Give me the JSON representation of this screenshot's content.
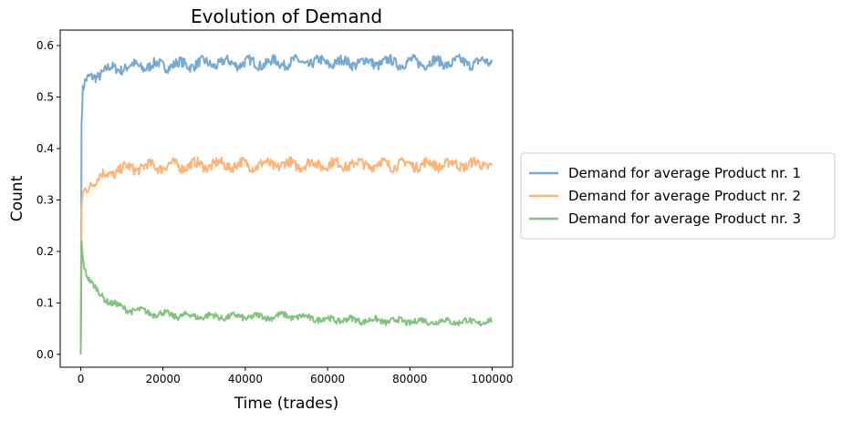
{
  "chart_data": {
    "type": "line",
    "title": "Evolution of Demand",
    "xlabel": "Time (trades)",
    "ylabel": "Count",
    "xlim": [
      -5000,
      105000
    ],
    "ylim": [
      -0.025,
      0.63
    ],
    "xticks": [
      0,
      20000,
      40000,
      60000,
      80000,
      100000
    ],
    "xtick_labels": [
      "0",
      "20000",
      "40000",
      "60000",
      "80000",
      "100000"
    ],
    "yticks": [
      0.0,
      0.1,
      0.2,
      0.3,
      0.4,
      0.5,
      0.6
    ],
    "ytick_labels": [
      "0.0",
      "0.1",
      "0.2",
      "0.3",
      "0.4",
      "0.5",
      "0.6"
    ],
    "grid": false,
    "legend_position": "outside-right",
    "x": [
      0,
      200,
      500,
      1000,
      2000,
      3000,
      5000,
      7000,
      10000,
      15000,
      20000,
      25000,
      30000,
      35000,
      40000,
      45000,
      50000,
      55000,
      60000,
      65000,
      70000,
      75000,
      80000,
      85000,
      90000,
      95000,
      100000
    ],
    "series": [
      {
        "name": "Demand for average Product nr. 1",
        "color": "#77aad3",
        "values": [
          0.0,
          0.45,
          0.51,
          0.525,
          0.535,
          0.54,
          0.548,
          0.553,
          0.558,
          0.56,
          0.562,
          0.563,
          0.565,
          0.566,
          0.566,
          0.566,
          0.567,
          0.567,
          0.567,
          0.567,
          0.567,
          0.567,
          0.567,
          0.567,
          0.567,
          0.567,
          0.567
        ]
      },
      {
        "name": "Demand for average Product nr. 2",
        "color": "#fdb478",
        "values": [
          0.0,
          0.28,
          0.31,
          0.32,
          0.33,
          0.335,
          0.345,
          0.352,
          0.36,
          0.364,
          0.366,
          0.367,
          0.368,
          0.368,
          0.368,
          0.368,
          0.369,
          0.369,
          0.369,
          0.369,
          0.369,
          0.369,
          0.369,
          0.369,
          0.369,
          0.369,
          0.369
        ]
      },
      {
        "name": "Demand for average Product nr. 3",
        "color": "#82c37f",
        "values": [
          0.0,
          0.22,
          0.19,
          0.165,
          0.145,
          0.132,
          0.115,
          0.102,
          0.09,
          0.083,
          0.078,
          0.075,
          0.074,
          0.073,
          0.073,
          0.073,
          0.075,
          0.071,
          0.068,
          0.067,
          0.066,
          0.065,
          0.064,
          0.064,
          0.064,
          0.063,
          0.063
        ]
      }
    ]
  }
}
